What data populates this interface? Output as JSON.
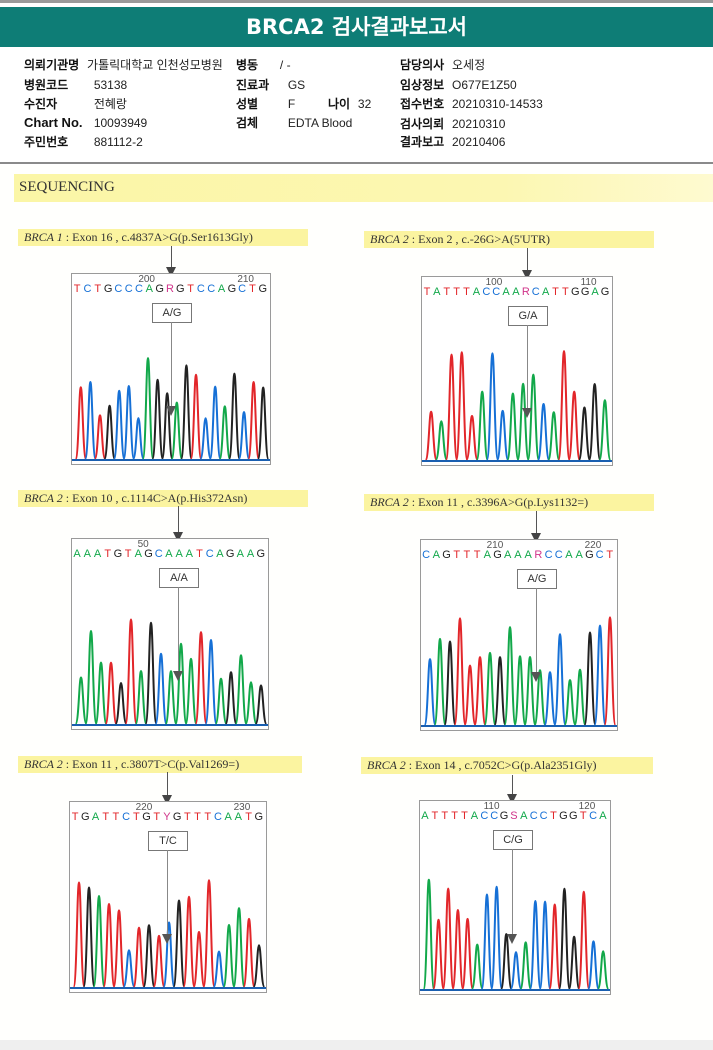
{
  "title": "BRCA2 검사결과보고서",
  "patient_info": {
    "institution": {
      "label": "의뢰기관명",
      "value": "가톨릭대학교 인천성모병원"
    },
    "ward": {
      "label": "병동",
      "value": "/ -"
    },
    "doctor": {
      "label": "담당의사",
      "value": "오세정"
    },
    "hospital_code": {
      "label": "병원코드",
      "value": "53138"
    },
    "department": {
      "label": "진료과",
      "value": "GS"
    },
    "clinical_info": {
      "label": "임상정보",
      "value": "O677E1Z50"
    },
    "patient_name": {
      "label": "수진자",
      "value": "전혜랑"
    },
    "sex": {
      "label": "성별",
      "value": "F"
    },
    "age": {
      "label": "나이",
      "value": "32"
    },
    "accession_no": {
      "label": "접수번호",
      "value": "20210310-14533"
    },
    "chart_no": {
      "label": "Chart No.",
      "value": "10093949"
    },
    "specimen": {
      "label": "검체",
      "value": "EDTA Blood"
    },
    "request_date": {
      "label": "검사의뢰",
      "value": "20210310"
    },
    "resident_no": {
      "label": "주민번호",
      "value": "881112-2"
    },
    "report_date": {
      "label": "결과보고",
      "value": "20210406"
    }
  },
  "section_title": "SEQUENCING",
  "variants": [
    {
      "gene": "BRCA 1",
      "desc": " : Exon 16 , c.4837A>G(p.Ser1613Gly)",
      "pos_left": "200",
      "pos_right": "210",
      "sequence": "TCTGCCCAGRGTCCAGCTG",
      "call": "A/G",
      "peaks": "RBRKBBBGKKGKRBBGKBRK"
    },
    {
      "gene": "BRCA 2",
      "desc": " : Exon 2 , c.-26G>A(5'UTR)",
      "pos_left": "100",
      "pos_right": "110",
      "sequence": "TATTTACCAARCATTGGAG",
      "call": "G/A",
      "peaks": "RGRRRGBBGGGBGRRKKG"
    },
    {
      "gene": "BRCA 2",
      "desc": " : Exon 10 , c.1114C>A(p.His372Asn)",
      "pos_left": "50",
      "pos_right": "",
      "sequence": "AAATGTAGCAAATCAGAAG",
      "call": "A/A",
      "peaks": "GGGRKRGKBGGGRBGKGGK"
    },
    {
      "gene": "BRCA 2",
      "desc": " : Exon 11 , c.3396A>G(p.Lys1132=)",
      "pos_left": "210",
      "pos_right": "220",
      "sequence": "CAGTTTAGAAARCCAAGCT",
      "call": "A/G",
      "peaks": "BGKRRRGKGGGGBBGGKBR"
    },
    {
      "gene": "BRCA 2",
      "desc": " : Exon 11 , c.3807T>C(p.Val1269=)",
      "pos_left": "220",
      "pos_right": "230",
      "sequence": "TGATTCTGTYGTTTCAATG",
      "call": "T/C",
      "peaks": "RKGRRBRKRBKRRRBGGRK"
    },
    {
      "gene": "BRCA 2",
      "desc": " : Exon 14 , c.7052C>G(p.Ala2351Gly)",
      "pos_left": "110",
      "pos_right": "120",
      "sequence": "ATTTTACCGSACCTGGTCA",
      "call": "C/G",
      "peaks": "GRRRRGBBKBGBBRKKRBG"
    }
  ],
  "colors": {
    "title_bar": "#0e7d76",
    "highlight": "#fbf4a0",
    "A": "#12a84a",
    "C": "#1670d6",
    "G": "#222222",
    "T": "#e2262a",
    "N": "#d0338a"
  }
}
